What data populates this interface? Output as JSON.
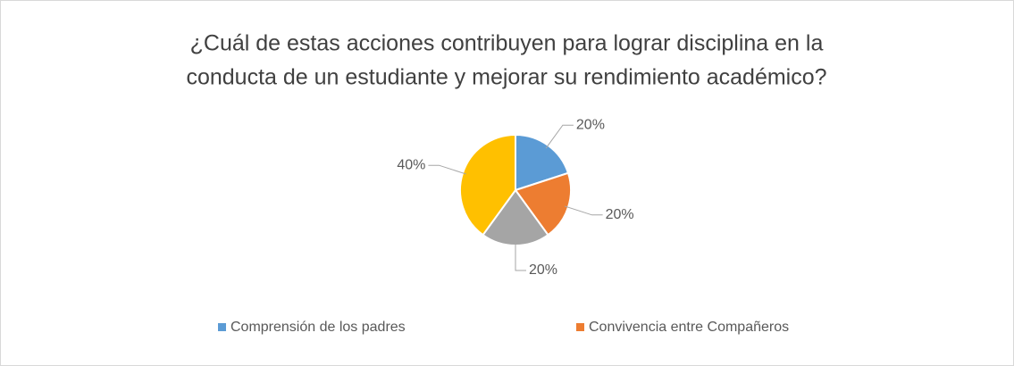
{
  "chart_data": {
    "type": "pie",
    "title": [
      "¿Cuál de estas acciones contribuyen para lograr disciplina en la",
      "conducta de un estudiante y mejorar su rendimiento académico?"
    ],
    "categories": [
      "Comprensión de los padres",
      "Convivencia entre Compañeros",
      null,
      null
    ],
    "values": [
      20,
      20,
      20,
      40
    ],
    "value_labels": [
      "20%",
      "20%",
      "20%",
      "40%"
    ],
    "colors": [
      "#5b9bd5",
      "#ed7d31",
      "#a5a5a5",
      "#ffc000"
    ]
  }
}
